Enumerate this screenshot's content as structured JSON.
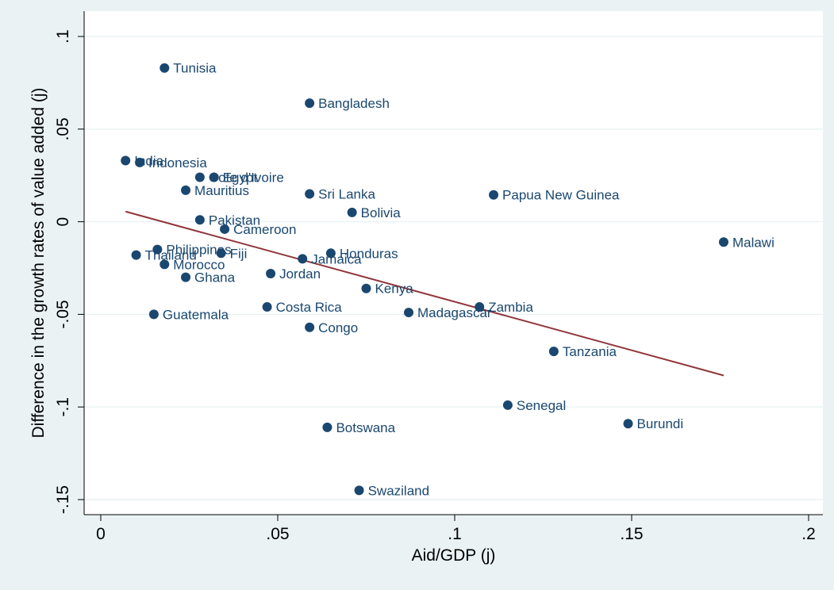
{
  "chart_data": {
    "type": "scatter",
    "title": "",
    "xlabel": "Aid/GDP (j)",
    "ylabel": "Difference in the growth rates of value added (j)",
    "xlim": [
      0,
      0.2
    ],
    "ylim": [
      -0.15,
      0.1
    ],
    "x_ticks": [
      0,
      0.05,
      0.1,
      0.15,
      0.2
    ],
    "x_tick_labels": [
      "0",
      ".05",
      ".1",
      ".15",
      ".2"
    ],
    "y_ticks": [
      -0.15,
      -0.1,
      -0.05,
      0,
      0.05,
      0.1
    ],
    "y_tick_labels": [
      "-.15",
      "-.1",
      "-.05",
      "0",
      ".05",
      ".1"
    ],
    "grid": true,
    "legend": "none",
    "colors": {
      "background": "#eaf2f3",
      "plot_area": "#ffffff",
      "marker": "#1a476f",
      "fit_line": "#90353b"
    },
    "points": [
      {
        "label": "Tunisia",
        "x": 0.018,
        "y": 0.083
      },
      {
        "label": "Bangladesh",
        "x": 0.059,
        "y": 0.064
      },
      {
        "label": "India",
        "x": 0.007,
        "y": 0.033
      },
      {
        "label": "Indonesia",
        "x": 0.011,
        "y": 0.032
      },
      {
        "label": "Cote d'Ivoire",
        "x": 0.028,
        "y": 0.024
      },
      {
        "label": "Egypt",
        "x": 0.032,
        "y": 0.024
      },
      {
        "label": "Mauritius",
        "x": 0.024,
        "y": 0.017
      },
      {
        "label": "Sri Lanka",
        "x": 0.059,
        "y": 0.015
      },
      {
        "label": "Papua New Guinea",
        "x": 0.111,
        "y": 0.0145
      },
      {
        "label": "Bolivia",
        "x": 0.071,
        "y": 0.005
      },
      {
        "label": "Pakistan",
        "x": 0.028,
        "y": 0.001
      },
      {
        "label": "Cameroon",
        "x": 0.035,
        "y": -0.004
      },
      {
        "label": "Malawi",
        "x": 0.176,
        "y": -0.011
      },
      {
        "label": "Philippines",
        "x": 0.016,
        "y": -0.015
      },
      {
        "label": "Thailand",
        "x": 0.01,
        "y": -0.018
      },
      {
        "label": "Fiji",
        "x": 0.034,
        "y": -0.017
      },
      {
        "label": "Honduras",
        "x": 0.065,
        "y": -0.017
      },
      {
        "label": "Jamaica",
        "x": 0.057,
        "y": -0.02
      },
      {
        "label": "Morocco",
        "x": 0.018,
        "y": -0.023
      },
      {
        "label": "Jordan",
        "x": 0.048,
        "y": -0.028
      },
      {
        "label": "Ghana",
        "x": 0.024,
        "y": -0.03
      },
      {
        "label": "Kenya",
        "x": 0.075,
        "y": -0.036
      },
      {
        "label": "Costa Rica",
        "x": 0.047,
        "y": -0.046
      },
      {
        "label": "Zambia",
        "x": 0.107,
        "y": -0.046
      },
      {
        "label": "Madagascar",
        "x": 0.087,
        "y": -0.049
      },
      {
        "label": "Guatemala",
        "x": 0.015,
        "y": -0.05
      },
      {
        "label": "Congo",
        "x": 0.059,
        "y": -0.057
      },
      {
        "label": "Tanzania",
        "x": 0.128,
        "y": -0.07
      },
      {
        "label": "Senegal",
        "x": 0.115,
        "y": -0.099
      },
      {
        "label": "Burundi",
        "x": 0.149,
        "y": -0.109
      },
      {
        "label": "Botswana",
        "x": 0.064,
        "y": -0.111
      },
      {
        "label": "Swaziland",
        "x": 0.073,
        "y": -0.145
      }
    ],
    "fit_line": {
      "x": [
        0.007,
        0.176
      ],
      "y": [
        0.0055,
        -0.083
      ]
    }
  }
}
